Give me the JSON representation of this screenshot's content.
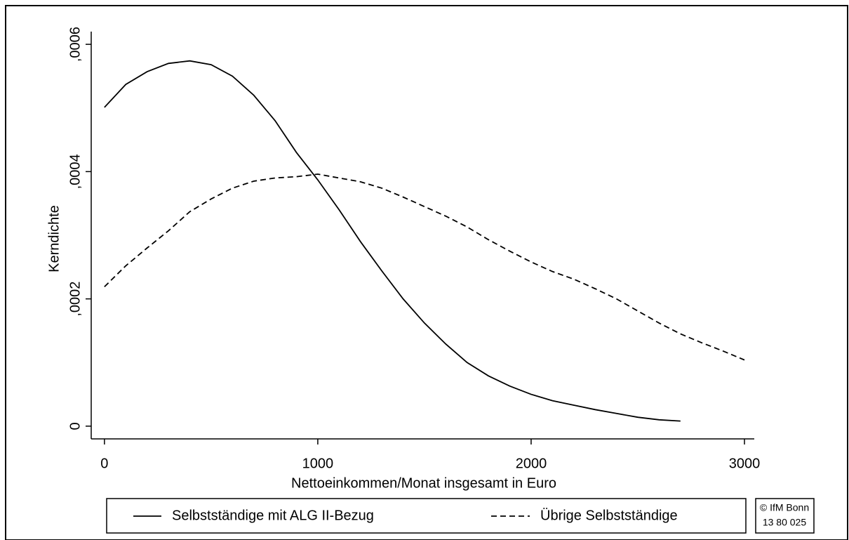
{
  "chart_data": {
    "type": "line",
    "xlabel": "Nettoeinkommen/Monat insgesamt in Euro",
    "ylabel": "Kerndichte",
    "x": [
      0,
      100,
      200,
      300,
      400,
      500,
      600,
      700,
      800,
      900,
      1000,
      1100,
      1200,
      1300,
      1400,
      1500,
      1600,
      1700,
      1800,
      1900,
      2000,
      2100,
      2200,
      2300,
      2400,
      2500,
      2600,
      2700,
      2800,
      2900,
      3000
    ],
    "series": [
      {
        "name": "Selbstständige mit ALG II-Bezug",
        "color": "#000000",
        "linestyle": "solid",
        "values": [
          0.000501,
          0.000537,
          0.000557,
          0.00057,
          0.000574,
          0.000568,
          0.00055,
          0.00052,
          0.00048,
          0.00043,
          0.000387,
          0.00034,
          0.00029,
          0.000244,
          0.0002,
          0.000162,
          0.000129,
          0.0001,
          7.9e-05,
          6.3e-05,
          5e-05,
          4e-05,
          3.3e-05,
          2.6e-05,
          2e-05,
          1.4e-05,
          1e-05,
          8e-06,
          null,
          null,
          null
        ]
      },
      {
        "name": "Übrige Selbstständige",
        "color": "#000000",
        "linestyle": "dashed",
        "values": [
          0.000219,
          0.000252,
          0.00028,
          0.000307,
          0.000337,
          0.000357,
          0.000374,
          0.000385,
          0.00039,
          0.000392,
          0.000396,
          0.00039,
          0.000384,
          0.000374,
          0.00036,
          0.000345,
          0.00033,
          0.000313,
          0.000293,
          0.000275,
          0.000258,
          0.000243,
          0.000231,
          0.000216,
          0.0002,
          0.000181,
          0.000162,
          0.000145,
          0.000131,
          0.000118,
          0.000104
        ]
      }
    ],
    "xlim": [
      -62,
      3046
    ],
    "xticks": [
      0,
      1000,
      2000,
      3000
    ],
    "ylim": [
      -2e-05,
      0.00062
    ],
    "yticks": [
      0,
      {
        "value": 0.0002,
        "label": ",0002"
      },
      {
        "value": 0.0004,
        "label": ",0004"
      },
      {
        "value": 0.0006,
        "label": ",0006"
      }
    ],
    "grid": false,
    "legend": "bottom",
    "annotations": [
      "© IfM Bonn",
      "13 80 025"
    ]
  }
}
